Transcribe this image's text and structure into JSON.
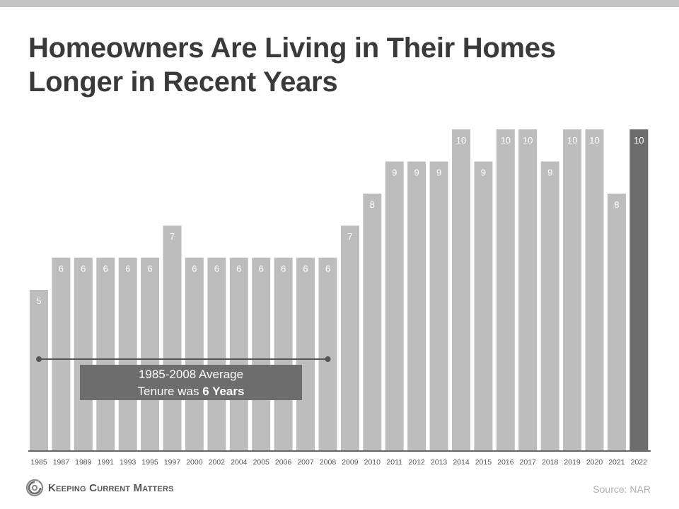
{
  "title_line1": "Homeowners Are Living in Their Homes",
  "title_line2": "Longer in Recent Years",
  "annotation": {
    "line1": "1985-2008 Average",
    "line2_prefix": "Tenure was ",
    "line2_bold": "6 Years"
  },
  "source": "Source: NAR",
  "logo": {
    "text": "Keeping Current Matters",
    "icon": "kcm-swirl-icon"
  },
  "colors": {
    "bar": "#bdbdbd",
    "highlight_bar": "#6d6d6d",
    "average_line": "#555555"
  },
  "chart_data": {
    "type": "bar",
    "title": "Homeowners Are Living in Their Homes Longer in Recent Years",
    "xlabel": "",
    "ylabel": "",
    "categories": [
      "1985",
      "1987",
      "1989",
      "1991",
      "1993",
      "1995",
      "1997",
      "2000",
      "2002",
      "2004",
      "2005",
      "2006",
      "2007",
      "2008",
      "2009",
      "2010",
      "2011",
      "2012",
      "2013",
      "2014",
      "2015",
      "2016",
      "2017",
      "2018",
      "2019",
      "2020",
      "2021",
      "2022"
    ],
    "values": [
      5,
      6,
      6,
      6,
      6,
      6,
      7,
      6,
      6,
      6,
      6,
      6,
      6,
      6,
      7,
      8,
      9,
      9,
      9,
      10,
      9,
      10,
      10,
      9,
      10,
      10,
      8,
      10
    ],
    "highlight": "2022",
    "average": {
      "value": 6,
      "from": "1985",
      "to": "2008"
    },
    "ylim": [
      0,
      10
    ],
    "grid": false,
    "legend": "none"
  }
}
